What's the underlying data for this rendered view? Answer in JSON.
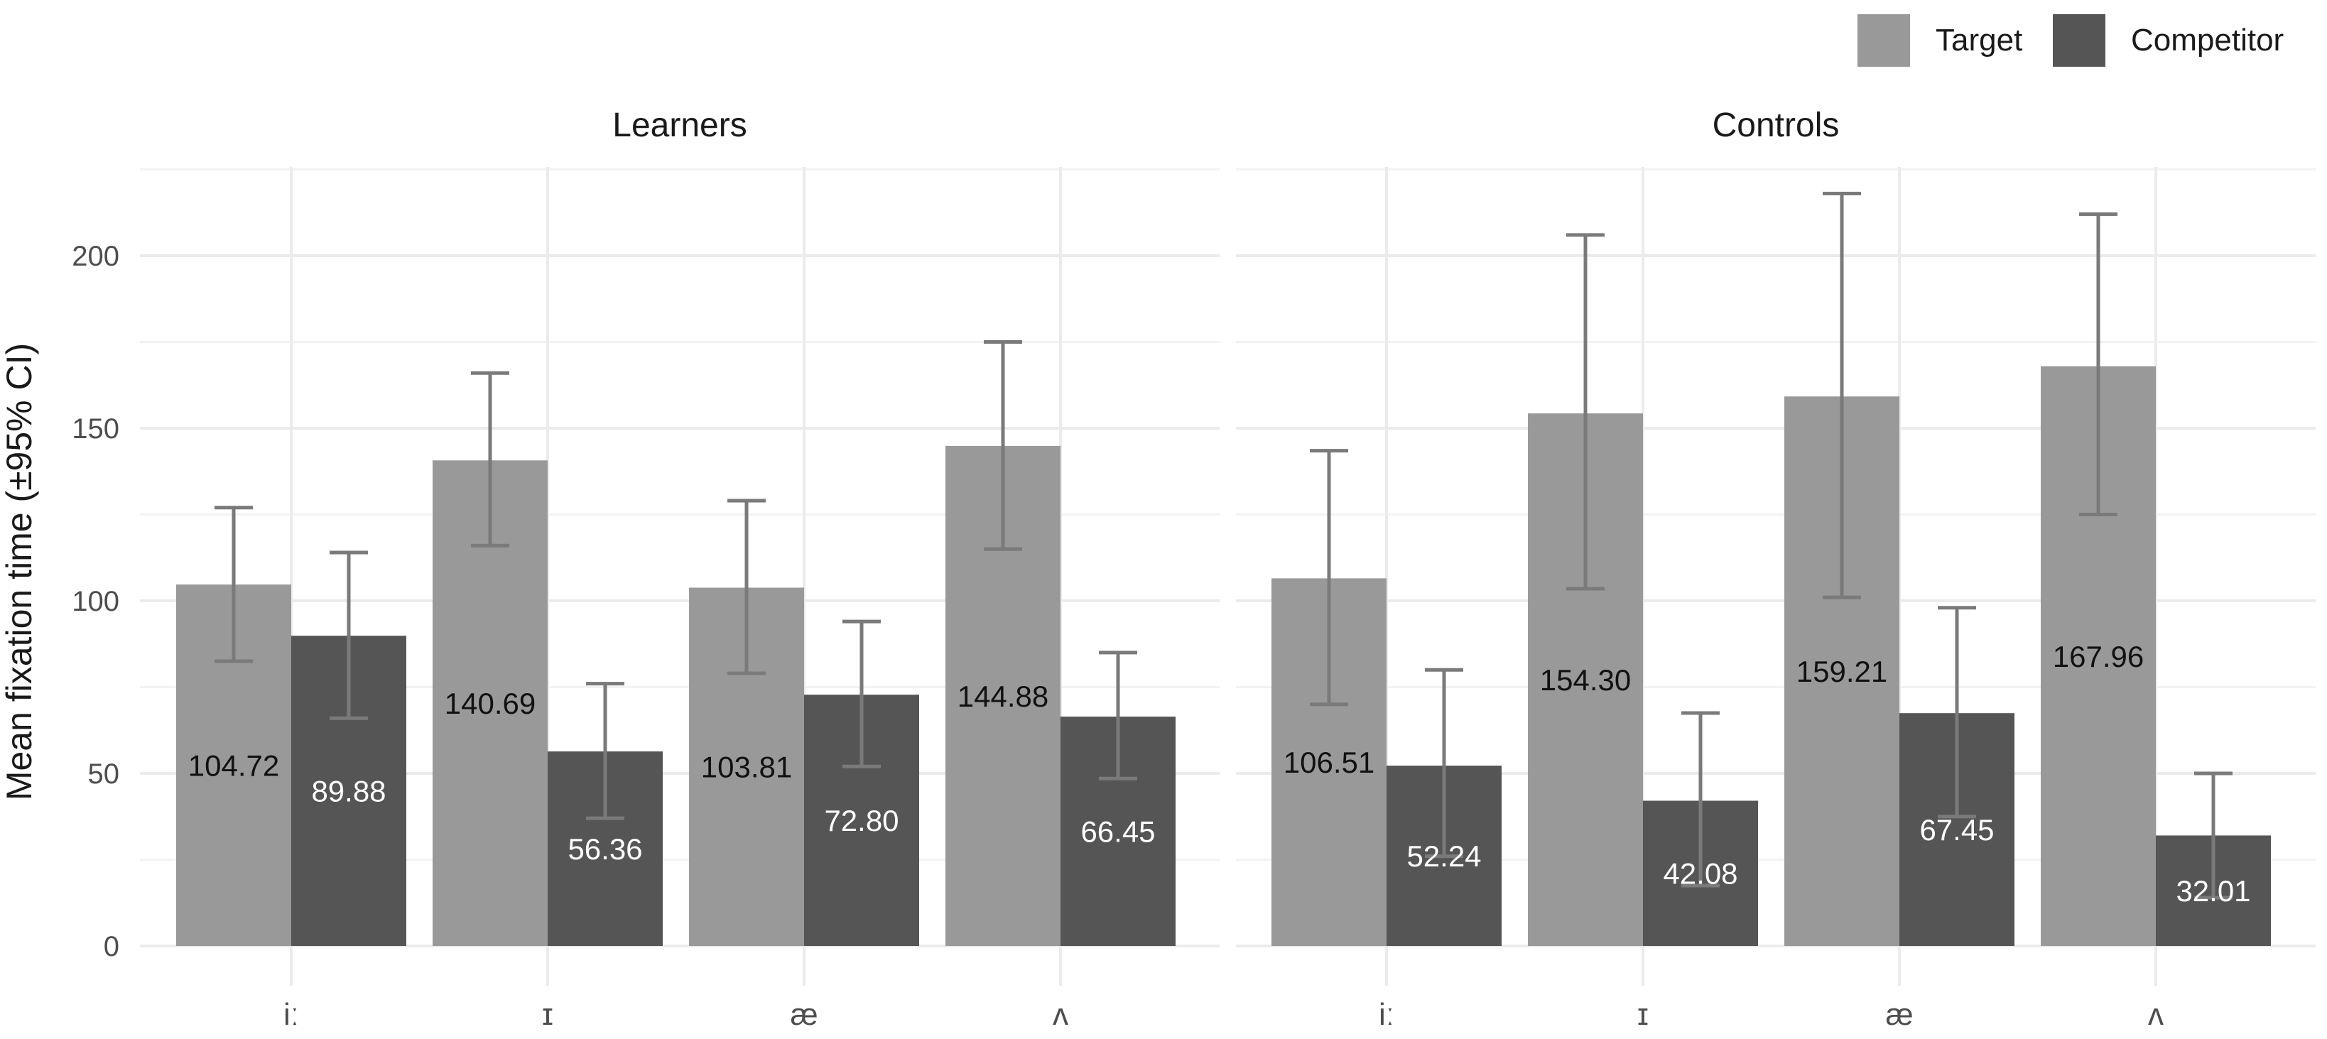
{
  "chart_data": {
    "type": "bar",
    "ylabel": "Mean fixation time (±95% CI)",
    "xlabel": "",
    "ylim": [
      0,
      225
    ],
    "yticks": [
      0,
      50,
      100,
      150,
      200
    ],
    "categories": [
      "iː",
      "ɪ",
      "æ",
      "ʌ"
    ],
    "legend": {
      "position": "top-right",
      "entries": [
        {
          "name": "Target",
          "color": "#999999"
        },
        {
          "name": "Competitor",
          "color": "#555555"
        }
      ]
    },
    "facets": [
      {
        "title": "Learners",
        "series": [
          {
            "name": "Target",
            "values": [
              104.72,
              140.69,
              103.81,
              144.88
            ],
            "labels": [
              "104.72",
              "140.69",
              "103.81",
              "144.88"
            ],
            "ci_low": [
              82.5,
              116,
              79,
              115
            ],
            "ci_high": [
              127,
              166,
              129,
              175
            ]
          },
          {
            "name": "Competitor",
            "values": [
              89.88,
              56.36,
              72.8,
              66.45
            ],
            "labels": [
              "89.88",
              "56.36",
              "72.80",
              "66.45"
            ],
            "ci_low": [
              66,
              37,
              52,
              48.5
            ],
            "ci_high": [
              114,
              76,
              94,
              85
            ]
          }
        ]
      },
      {
        "title": "Controls",
        "series": [
          {
            "name": "Target",
            "values": [
              106.51,
              154.3,
              159.21,
              167.96
            ],
            "labels": [
              "106.51",
              "154.30",
              "159.21",
              "167.96"
            ],
            "ci_low": [
              70,
              103.5,
              101,
              125
            ],
            "ci_high": [
              143.5,
              206,
              218,
              212
            ]
          },
          {
            "name": "Competitor",
            "values": [
              52.24,
              42.08,
              67.45,
              32.01
            ],
            "labels": [
              "52.24",
              "42.08",
              "67.45",
              "32.01"
            ],
            "ci_low": [
              26,
              17.5,
              37.5,
              14
            ],
            "ci_high": [
              80,
              67.5,
              98,
              50
            ]
          }
        ]
      }
    ]
  }
}
